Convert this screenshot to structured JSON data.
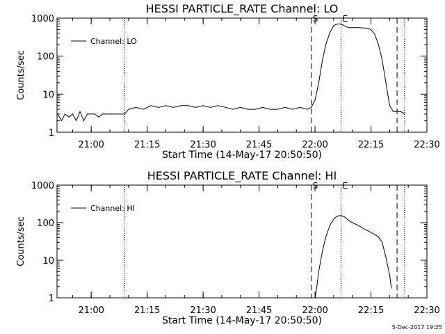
{
  "chart_data": [
    {
      "type": "line",
      "title": "HESSI PARTICLE_RATE Channel: LO",
      "xlabel": "Start Time (14-May-17 20:50:50)",
      "ylabel": "Counts/sec",
      "y_scale": "log",
      "ylim": [
        1,
        1000
      ],
      "xlim": [
        "20:50:50",
        "22:30:00"
      ],
      "xticks": [
        "21:00",
        "21:15",
        "21:30",
        "21:45",
        "22:00",
        "22:15",
        "22:30"
      ],
      "yticks": [
        "1",
        "10",
        "100",
        "1000"
      ],
      "legend": {
        "position": "top-left",
        "entries": [
          "Channel: LO"
        ]
      },
      "flags": [
        {
          "label": "S",
          "time": "21:59"
        },
        {
          "label": "E",
          "time": "22:07"
        }
      ],
      "dashed_lines": [
        "21:59",
        "22:22"
      ],
      "dotted_lines": [
        "21:09",
        "22:07",
        "22:24"
      ],
      "series": [
        {
          "name": "Channel: LO",
          "x": [
            "20:51",
            "20:52",
            "20:53",
            "20:54",
            "20:55",
            "20:56",
            "20:57",
            "20:58",
            "20:59",
            "21:00",
            "21:01",
            "21:02",
            "21:03",
            "21:04",
            "21:05",
            "21:06",
            "21:07",
            "21:08",
            "21:09",
            "21:10",
            "21:12",
            "21:14",
            "21:16",
            "21:18",
            "21:20",
            "21:22",
            "21:24",
            "21:26",
            "21:28",
            "21:30",
            "21:32",
            "21:34",
            "21:36",
            "21:38",
            "21:40",
            "21:42",
            "21:44",
            "21:46",
            "21:48",
            "21:50",
            "21:52",
            "21:54",
            "21:56",
            "21:58",
            "21:59",
            "22:00",
            "22:01",
            "22:02",
            "22:03",
            "22:04",
            "22:05",
            "22:06",
            "22:07",
            "22:08",
            "22:09",
            "22:10",
            "22:12",
            "22:14",
            "22:15",
            "22:16",
            "22:17",
            "22:18",
            "22:19",
            "22:20",
            "22:21",
            "22:22",
            "22:23",
            "22:24"
          ],
          "y": [
            3,
            2,
            3,
            2.5,
            3,
            2,
            3.5,
            2,
            3,
            3,
            3,
            2.5,
            3,
            3,
            3,
            3,
            3,
            3,
            3,
            4,
            4.5,
            4,
            5,
            4.5,
            5,
            4.5,
            5,
            5,
            4.5,
            5,
            4.5,
            5,
            4.5,
            4,
            4.5,
            4,
            4,
            4.5,
            4,
            4,
            4.5,
            4,
            4.5,
            4,
            4.5,
            7,
            20,
            80,
            220,
            420,
            640,
            700,
            700,
            620,
            560,
            560,
            560,
            540,
            500,
            380,
            200,
            80,
            20,
            5,
            3.5,
            3.5,
            3.5,
            3
          ]
        }
      ]
    },
    {
      "type": "line",
      "title": "HESSI PARTICLE_RATE Channel: HI",
      "xlabel": "Start Time (14-May-17 20:50:50)",
      "ylabel": "Counts/sec",
      "y_scale": "log",
      "ylim": [
        1,
        1000
      ],
      "xlim": [
        "20:50:50",
        "22:30:00"
      ],
      "xticks": [
        "21:00",
        "21:15",
        "21:30",
        "21:45",
        "22:00",
        "22:15",
        "22:30"
      ],
      "yticks": [
        "1",
        "10",
        "100",
        "1000"
      ],
      "legend": {
        "position": "top-left",
        "entries": [
          "Channel: HI"
        ]
      },
      "flags": [
        {
          "label": "S",
          "time": "21:59"
        },
        {
          "label": "E",
          "time": "22:07"
        }
      ],
      "dashed_lines": [
        "21:59",
        "22:22"
      ],
      "dotted_lines": [
        "21:09",
        "22:07",
        "22:24"
      ],
      "series": [
        {
          "name": "Channel: HI",
          "x": [
            "22:00",
            "22:00:30",
            "22:01",
            "22:02",
            "22:03",
            "22:04",
            "22:05",
            "22:06",
            "22:07",
            "22:08",
            "22:09",
            "22:10",
            "22:11",
            "22:12",
            "22:13",
            "22:14",
            "22:15",
            "22:16",
            "22:17",
            "22:18",
            "22:19",
            "22:20",
            "22:20:30"
          ],
          "y": [
            1,
            2,
            5,
            18,
            45,
            85,
            125,
            150,
            155,
            140,
            115,
            100,
            90,
            80,
            70,
            62,
            55,
            48,
            42,
            30,
            12,
            4,
            1.8
          ]
        }
      ]
    }
  ],
  "footer": {
    "timestamp": "5-Dec-2017 19:25"
  }
}
